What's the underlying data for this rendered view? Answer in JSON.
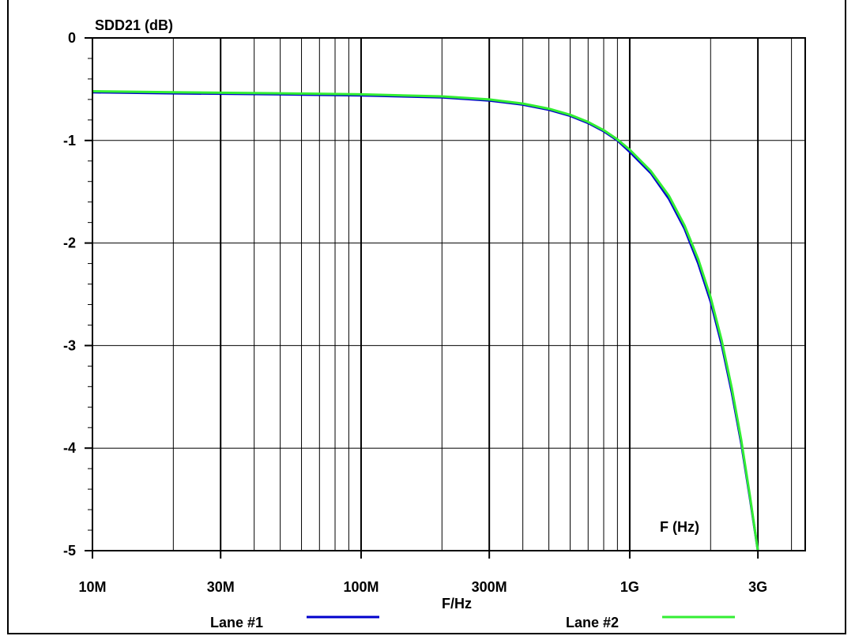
{
  "chart_data": {
    "type": "line",
    "title": "",
    "ylabel": "SDD21 (dB)",
    "xlabel": "F/Hz",
    "x_annotation": "F (Hz)",
    "x_scale": "log",
    "xlim": [
      10000000,
      4500000000
    ],
    "ylim": [
      -5,
      0
    ],
    "grid": true,
    "x_ticks": [
      {
        "value": 10000000,
        "label": "10M"
      },
      {
        "value": 30000000,
        "label": "30M"
      },
      {
        "value": 100000000,
        "label": "100M"
      },
      {
        "value": 300000000,
        "label": "300M"
      },
      {
        "value": 1000000000,
        "label": "1G"
      },
      {
        "value": 3000000000,
        "label": "3G"
      }
    ],
    "y_ticks": [
      {
        "value": 0,
        "label": "0"
      },
      {
        "value": -1,
        "label": "-1"
      },
      {
        "value": -2,
        "label": "-2"
      },
      {
        "value": -3,
        "label": "-3"
      },
      {
        "value": -4,
        "label": "-4"
      },
      {
        "value": -5,
        "label": "-5"
      }
    ],
    "legend_position": "bottom",
    "series": [
      {
        "name": "Lane #1",
        "color": "#0000cc",
        "x": [
          10000000,
          20000000,
          50000000,
          100000000,
          200000000,
          300000000,
          400000000,
          500000000,
          600000000,
          700000000,
          800000000,
          900000000,
          1000000000,
          1200000000,
          1400000000,
          1600000000,
          1800000000,
          2000000000,
          2200000000,
          2400000000,
          2600000000,
          2800000000,
          3000000000
        ],
        "y": [
          -0.53,
          -0.54,
          -0.55,
          -0.56,
          -0.58,
          -0.61,
          -0.65,
          -0.7,
          -0.76,
          -0.83,
          -0.91,
          -1.0,
          -1.11,
          -1.32,
          -1.57,
          -1.86,
          -2.2,
          -2.57,
          -2.99,
          -3.46,
          -3.95,
          -4.48,
          -5.0
        ]
      },
      {
        "name": "Lane #2",
        "color": "#33ee33",
        "x": [
          10000000,
          20000000,
          50000000,
          100000000,
          200000000,
          300000000,
          400000000,
          500000000,
          600000000,
          700000000,
          800000000,
          900000000,
          1000000000,
          1200000000,
          1400000000,
          1600000000,
          1800000000,
          2000000000,
          2200000000,
          2400000000,
          2600000000,
          2800000000,
          3000000000
        ],
        "y": [
          -0.52,
          -0.53,
          -0.54,
          -0.55,
          -0.57,
          -0.6,
          -0.64,
          -0.69,
          -0.75,
          -0.82,
          -0.9,
          -0.99,
          -1.09,
          -1.3,
          -1.54,
          -1.83,
          -2.16,
          -2.53,
          -2.95,
          -3.42,
          -3.92,
          -4.46,
          -5.0
        ]
      }
    ]
  }
}
